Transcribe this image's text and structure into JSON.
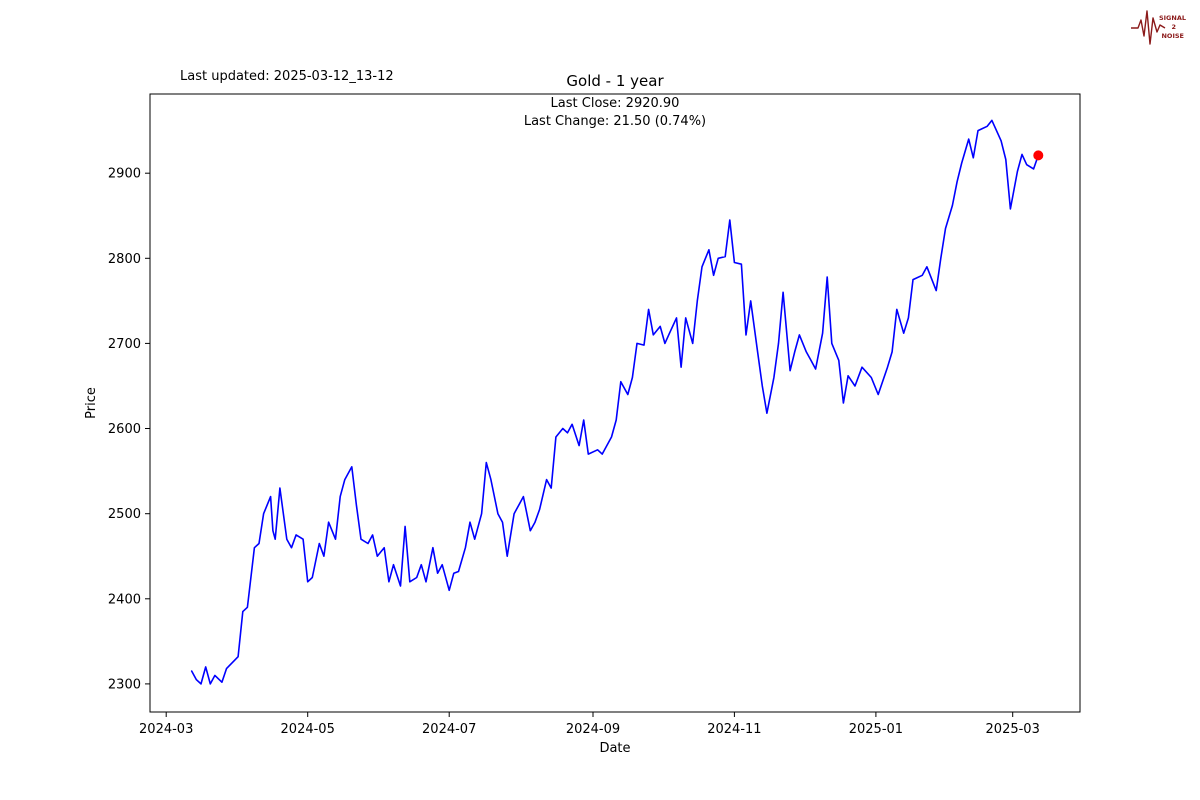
{
  "header": {
    "last_updated": "Last updated: 2025-03-12_13-12",
    "title": "Gold - 1 year",
    "annotation_line1": "Last Close: 2920.90",
    "annotation_line2": "Last Change: 21.50 (0.74%)"
  },
  "logo": {
    "lines": [
      "SIGNAL",
      "2",
      "NOISE"
    ],
    "color": "#8b1a1a"
  },
  "chart_data": {
    "type": "line",
    "title": "Gold - 1 year",
    "xlabel": "Date",
    "ylabel": "Price",
    "line_color": "#0000ff",
    "marker_color": "#ff0000",
    "last_close": 2920.9,
    "last_change_text": "21.50 (0.74%)",
    "x_domain": [
      "2024-02-23",
      "2025-03-30"
    ],
    "ylim": [
      2267,
      2993
    ],
    "yticks": [
      2300,
      2400,
      2500,
      2600,
      2700,
      2800,
      2900
    ],
    "xticks": [
      {
        "label": "2024-03",
        "date": "2024-03-01"
      },
      {
        "label": "2024-05",
        "date": "2024-05-01"
      },
      {
        "label": "2024-07",
        "date": "2024-07-01"
      },
      {
        "label": "2024-09",
        "date": "2024-09-01"
      },
      {
        "label": "2024-11",
        "date": "2024-11-01"
      },
      {
        "label": "2025-01",
        "date": "2025-01-01"
      },
      {
        "label": "2025-03",
        "date": "2025-03-01"
      }
    ],
    "series": [
      {
        "name": "Gold",
        "dates": [
          "2024-03-12",
          "2024-03-14",
          "2024-03-16",
          "2024-03-18",
          "2024-03-20",
          "2024-03-22",
          "2024-03-25",
          "2024-03-27",
          "2024-04-01",
          "2024-04-03",
          "2024-04-05",
          "2024-04-08",
          "2024-04-10",
          "2024-04-12",
          "2024-04-15",
          "2024-04-16",
          "2024-04-17",
          "2024-04-19",
          "2024-04-22",
          "2024-04-24",
          "2024-04-26",
          "2024-04-29",
          "2024-05-01",
          "2024-05-03",
          "2024-05-06",
          "2024-05-08",
          "2024-05-10",
          "2024-05-13",
          "2024-05-15",
          "2024-05-17",
          "2024-05-20",
          "2024-05-22",
          "2024-05-24",
          "2024-05-27",
          "2024-05-29",
          "2024-05-31",
          "2024-06-03",
          "2024-06-05",
          "2024-06-07",
          "2024-06-10",
          "2024-06-12",
          "2024-06-14",
          "2024-06-17",
          "2024-06-19",
          "2024-06-21",
          "2024-06-24",
          "2024-06-26",
          "2024-06-28",
          "2024-07-01",
          "2024-07-03",
          "2024-07-05",
          "2024-07-08",
          "2024-07-10",
          "2024-07-12",
          "2024-07-15",
          "2024-07-17",
          "2024-07-19",
          "2024-07-22",
          "2024-07-24",
          "2024-07-26",
          "2024-07-29",
          "2024-07-31",
          "2024-08-02",
          "2024-08-05",
          "2024-08-07",
          "2024-08-09",
          "2024-08-12",
          "2024-08-14",
          "2024-08-16",
          "2024-08-19",
          "2024-08-21",
          "2024-08-23",
          "2024-08-26",
          "2024-08-28",
          "2024-08-30",
          "2024-09-03",
          "2024-09-05",
          "2024-09-09",
          "2024-09-11",
          "2024-09-13",
          "2024-09-16",
          "2024-09-18",
          "2024-09-20",
          "2024-09-23",
          "2024-09-25",
          "2024-09-27",
          "2024-09-30",
          "2024-10-02",
          "2024-10-04",
          "2024-10-07",
          "2024-10-09",
          "2024-10-11",
          "2024-10-14",
          "2024-10-16",
          "2024-10-18",
          "2024-10-21",
          "2024-10-23",
          "2024-10-25",
          "2024-10-28",
          "2024-10-30",
          "2024-11-01",
          "2024-11-04",
          "2024-11-06",
          "2024-11-08",
          "2024-11-11",
          "2024-11-13",
          "2024-11-15",
          "2024-11-18",
          "2024-11-20",
          "2024-11-22",
          "2024-11-25",
          "2024-11-27",
          "2024-11-29",
          "2024-12-02",
          "2024-12-04",
          "2024-12-06",
          "2024-12-09",
          "2024-12-11",
          "2024-12-13",
          "2024-12-16",
          "2024-12-18",
          "2024-12-20",
          "2024-12-23",
          "2024-12-26",
          "2024-12-30",
          "2025-01-02",
          "2025-01-06",
          "2025-01-08",
          "2025-01-10",
          "2025-01-13",
          "2025-01-15",
          "2025-01-17",
          "2025-01-21",
          "2025-01-23",
          "2025-01-27",
          "2025-01-29",
          "2025-01-31",
          "2025-02-03",
          "2025-02-05",
          "2025-02-07",
          "2025-02-10",
          "2025-02-12",
          "2025-02-14",
          "2025-02-18",
          "2025-02-20",
          "2025-02-24",
          "2025-02-26",
          "2025-02-28",
          "2025-03-03",
          "2025-03-05",
          "2025-03-07",
          "2025-03-10",
          "2025-03-12"
        ],
        "values": [
          2315,
          2305,
          2300,
          2320,
          2300,
          2310,
          2302,
          2318,
          2332,
          2385,
          2390,
          2460,
          2465,
          2500,
          2520,
          2480,
          2470,
          2530,
          2470,
          2460,
          2475,
          2470,
          2420,
          2425,
          2465,
          2450,
          2490,
          2470,
          2520,
          2540,
          2555,
          2510,
          2470,
          2465,
          2475,
          2450,
          2460,
          2420,
          2440,
          2415,
          2485,
          2420,
          2425,
          2440,
          2420,
          2460,
          2430,
          2440,
          2410,
          2430,
          2432,
          2460,
          2490,
          2470,
          2500,
          2560,
          2540,
          2500,
          2490,
          2450,
          2500,
          2510,
          2520,
          2480,
          2490,
          2505,
          2540,
          2530,
          2590,
          2600,
          2595,
          2605,
          2580,
          2610,
          2570,
          2575,
          2570,
          2590,
          2610,
          2655,
          2640,
          2660,
          2700,
          2698,
          2740,
          2710,
          2720,
          2700,
          2712,
          2730,
          2672,
          2730,
          2700,
          2750,
          2790,
          2810,
          2780,
          2800,
          2802,
          2845,
          2795,
          2793,
          2710,
          2750,
          2690,
          2650,
          2618,
          2660,
          2700,
          2760,
          2668,
          2690,
          2710,
          2690,
          2680,
          2670,
          2712,
          2778,
          2700,
          2680,
          2630,
          2662,
          2650,
          2672,
          2660,
          2640,
          2672,
          2690,
          2740,
          2712,
          2730,
          2775,
          2780,
          2790,
          2762,
          2800,
          2835,
          2862,
          2890,
          2912,
          2940,
          2918,
          2950,
          2955,
          2962,
          2938,
          2916,
          2858,
          2902,
          2922,
          2910,
          2905,
          2920.9
        ]
      }
    ]
  }
}
